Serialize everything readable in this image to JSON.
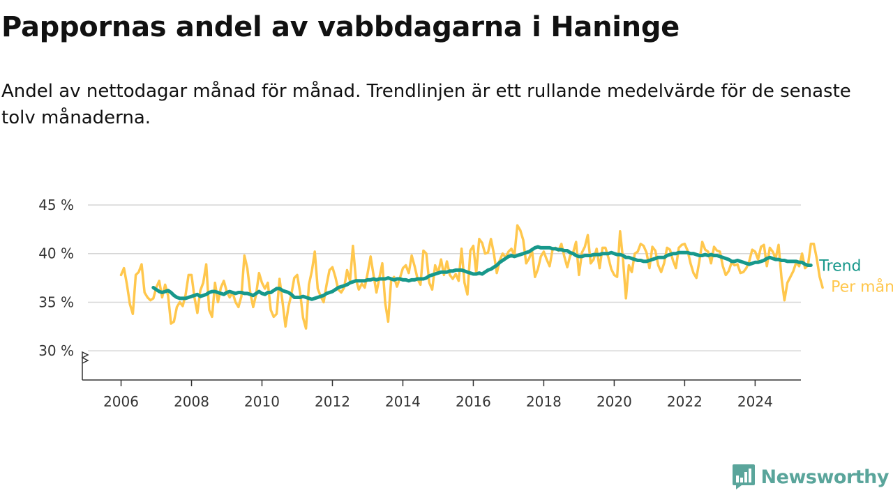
{
  "header": {
    "title": "Pappornas andel av vabbdagarna i Haninge",
    "subtitle": "Andel av nettodagar månad för månad. Trendlinjen är ett rullande medelvärde för de senaste tolv månaderna."
  },
  "brand": {
    "name": "Newsworthy",
    "color": "#5aa59b",
    "icon": "bar-chart-bubble-icon"
  },
  "chart_data": {
    "type": "line",
    "y_ticks": [
      30,
      35,
      40,
      45
    ],
    "y_tick_labels": [
      "30 %",
      "35 %",
      "40 %",
      "45 %"
    ],
    "ylim": [
      27,
      45
    ],
    "y_axis_break": true,
    "x_ticks": [
      2006,
      2008,
      2010,
      2012,
      2014,
      2016,
      2018,
      2020,
      2022,
      2024
    ],
    "xlim": [
      2004.9,
      2025.3
    ],
    "grid": true,
    "legend": "inline-right",
    "series": [
      {
        "name": "Per månad",
        "color": "#ffc74d",
        "x_start": 2006.0,
        "step": 0.0833333,
        "values": [
          37.8,
          38.5,
          36.8,
          34.8,
          33.8,
          37.8,
          38.1,
          38.9,
          36.0,
          35.5,
          35.2,
          35.4,
          36.5,
          37.2,
          35.5,
          36.8,
          35.7,
          32.8,
          33.0,
          34.5,
          35.0,
          34.6,
          35.8,
          37.8,
          37.8,
          35.5,
          33.9,
          36.2,
          37.0,
          38.9,
          34.2,
          33.5,
          37.0,
          35.0,
          36.5,
          37.2,
          36.1,
          35.5,
          36.0,
          35.0,
          34.5,
          35.6,
          39.8,
          38.5,
          36.0,
          34.5,
          35.8,
          38.0,
          37.0,
          36.4,
          37.0,
          34.2,
          33.5,
          33.8,
          37.4,
          35.0,
          32.5,
          34.5,
          35.8,
          37.5,
          37.8,
          36.0,
          33.4,
          32.3,
          36.8,
          38.2,
          40.2,
          36.4,
          35.6,
          35.0,
          36.8,
          38.3,
          38.6,
          37.6,
          36.3,
          36.0,
          36.5,
          38.3,
          37.2,
          40.8,
          37.4,
          36.3,
          36.9,
          36.5,
          38.0,
          39.7,
          37.8,
          36.0,
          37.5,
          39.0,
          34.9,
          33.0,
          37.2,
          37.6,
          36.6,
          37.5,
          38.5,
          38.8,
          38.0,
          39.8,
          38.7,
          37.4,
          36.8,
          40.3,
          40.0,
          37.0,
          36.3,
          38.8,
          38.0,
          39.4,
          37.8,
          39.2,
          37.8,
          37.4,
          37.9,
          37.2,
          40.5,
          37.0,
          35.8,
          40.3,
          40.8,
          38.0,
          41.5,
          41.1,
          40.0,
          40.1,
          41.5,
          40.0,
          38.0,
          39.3,
          40.0,
          39.6,
          40.2,
          40.5,
          39.8,
          42.9,
          42.4,
          41.4,
          39.0,
          39.5,
          40.3,
          37.6,
          38.4,
          39.7,
          40.2,
          39.4,
          38.7,
          40.4,
          40.6,
          40.3,
          41.0,
          39.7,
          38.6,
          39.8,
          40.1,
          41.2,
          37.8,
          40.1,
          40.7,
          41.9,
          39.0,
          39.4,
          40.5,
          38.5,
          40.6,
          40.6,
          39.6,
          38.4,
          37.8,
          37.6,
          42.3,
          39.4,
          35.4,
          38.8,
          38.1,
          40.0,
          40.2,
          41.0,
          40.8,
          40.1,
          38.5,
          40.7,
          40.3,
          38.8,
          38.1,
          39.0,
          40.6,
          40.4,
          39.3,
          38.5,
          40.6,
          40.9,
          41.0,
          40.3,
          39.0,
          38.0,
          37.5,
          39.2,
          41.2,
          40.4,
          40.2,
          39.0,
          40.7,
          40.3,
          40.2,
          38.7,
          37.8,
          38.2,
          39.1,
          38.8,
          38.9,
          38.0,
          38.1,
          38.5,
          39.2,
          40.4,
          40.2,
          39.4,
          40.7,
          40.9,
          38.7,
          40.6,
          40.2,
          39.5,
          40.9,
          37.5,
          35.2,
          37.0,
          37.6,
          38.2,
          39.1,
          38.7,
          40.0,
          38.5,
          38.8,
          41.0,
          41.0,
          39.5,
          37.6,
          36.5
        ]
      },
      {
        "name": "Trend",
        "color": "#17988b",
        "x_start": 2006.9167,
        "step": 0.0833333,
        "values": [
          36.5,
          36.3,
          36.1,
          36.0,
          36.1,
          36.2,
          36.0,
          35.7,
          35.5,
          35.4,
          35.4,
          35.4,
          35.5,
          35.6,
          35.7,
          35.8,
          35.6,
          35.7,
          35.8,
          36.0,
          36.1,
          36.1,
          36.0,
          35.9,
          35.8,
          36.0,
          36.1,
          36.0,
          35.9,
          36.0,
          36.0,
          35.9,
          35.9,
          35.8,
          35.7,
          35.9,
          36.1,
          35.9,
          35.8,
          36.0,
          36.0,
          36.2,
          36.4,
          36.4,
          36.2,
          36.1,
          36.0,
          35.8,
          35.5,
          35.5,
          35.5,
          35.6,
          35.5,
          35.4,
          35.3,
          35.4,
          35.5,
          35.6,
          35.7,
          35.9,
          36.0,
          36.1,
          36.3,
          36.5,
          36.6,
          36.7,
          36.8,
          37.0,
          37.1,
          37.2,
          37.2,
          37.2,
          37.2,
          37.3,
          37.3,
          37.4,
          37.3,
          37.4,
          37.4,
          37.4,
          37.5,
          37.4,
          37.3,
          37.4,
          37.4,
          37.3,
          37.3,
          37.2,
          37.3,
          37.3,
          37.4,
          37.4,
          37.4,
          37.5,
          37.7,
          37.8,
          37.9,
          38.0,
          38.1,
          38.1,
          38.1,
          38.2,
          38.2,
          38.3,
          38.3,
          38.3,
          38.2,
          38.1,
          38.0,
          37.9,
          37.9,
          38.0,
          37.9,
          38.1,
          38.3,
          38.4,
          38.6,
          38.8,
          39.1,
          39.3,
          39.5,
          39.7,
          39.8,
          39.7,
          39.8,
          39.9,
          40.0,
          40.1,
          40.2,
          40.4,
          40.6,
          40.7,
          40.6,
          40.6,
          40.6,
          40.6,
          40.5,
          40.5,
          40.4,
          40.4,
          40.3,
          40.3,
          40.1,
          40.0,
          39.8,
          39.7,
          39.7,
          39.8,
          39.8,
          39.8,
          39.9,
          39.9,
          39.9,
          40.0,
          40.0,
          40.0,
          40.1,
          40.0,
          39.9,
          39.9,
          39.8,
          39.6,
          39.6,
          39.5,
          39.4,
          39.3,
          39.3,
          39.2,
          39.2,
          39.3,
          39.4,
          39.5,
          39.6,
          39.6,
          39.6,
          39.8,
          39.9,
          40.0,
          40.0,
          40.1,
          40.1,
          40.1,
          40.1,
          40.0,
          40.0,
          39.9,
          39.8,
          39.8,
          39.9,
          39.8,
          39.9,
          39.8,
          39.8,
          39.7,
          39.6,
          39.5,
          39.4,
          39.2,
          39.2,
          39.3,
          39.2,
          39.1,
          39.0,
          38.9,
          39.0,
          39.1,
          39.1,
          39.2,
          39.3,
          39.5,
          39.6,
          39.5,
          39.4,
          39.4,
          39.3,
          39.3,
          39.2,
          39.2,
          39.2,
          39.2,
          39.1,
          39.1,
          38.9,
          38.8,
          38.8
        ]
      }
    ]
  }
}
